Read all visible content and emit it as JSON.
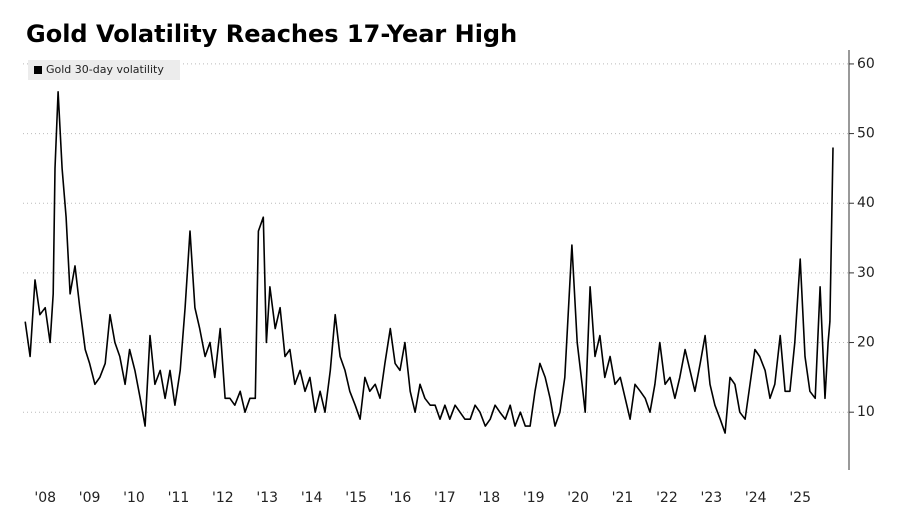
{
  "chart_data": {
    "type": "line",
    "title": "Gold Volatility Reaches 17-Year High",
    "series": [
      {
        "name": "Gold 30-day volatility",
        "color": "#000000",
        "x": [
          2008.05,
          2008.16,
          2008.27,
          2008.38,
          2008.5,
          2008.61,
          2008.68,
          2008.72,
          2008.79,
          2008.88,
          2008.97,
          2009.06,
          2009.17,
          2009.28,
          2009.4,
          2009.5,
          2009.62,
          2009.73,
          2009.85,
          2009.96,
          2010.07,
          2010.18,
          2010.3,
          2010.4,
          2010.52,
          2010.64,
          2010.75,
          2010.86,
          2010.97,
          2011.09,
          2011.2,
          2011.31,
          2011.42,
          2011.54,
          2011.65,
          2011.76,
          2011.87,
          2011.98,
          2012.1,
          2012.21,
          2012.32,
          2012.44,
          2012.55,
          2012.66,
          2012.77,
          2012.89,
          2013.0,
          2013.11,
          2013.23,
          2013.3,
          2013.41,
          2013.48,
          2013.56,
          2013.68,
          2013.79,
          2013.9,
          2014.01,
          2014.12,
          2014.24,
          2014.35,
          2014.46,
          2014.58,
          2014.69,
          2014.8,
          2014.92,
          2015.03,
          2015.14,
          2015.25,
          2015.36,
          2015.48,
          2015.59,
          2015.7,
          2015.81,
          2015.93,
          2016.04,
          2016.15,
          2016.27,
          2016.38,
          2016.49,
          2016.6,
          2016.72,
          2016.83,
          2016.94,
          2017.05,
          2017.17,
          2017.28,
          2017.39,
          2017.5,
          2017.61,
          2017.73,
          2017.84,
          2017.95,
          2018.07,
          2018.18,
          2018.29,
          2018.41,
          2018.52,
          2018.63,
          2018.74,
          2018.86,
          2018.97,
          2019.08,
          2019.2,
          2019.31,
          2019.42,
          2019.53,
          2019.64,
          2019.76,
          2019.87,
          2019.98,
          2020.09,
          2020.2,
          2020.36,
          2020.48,
          2020.59,
          2020.66,
          2020.77,
          2020.88,
          2020.99,
          2021.1,
          2021.22,
          2021.33,
          2021.45,
          2021.56,
          2021.67,
          2021.78,
          2021.9,
          2022.01,
          2022.12,
          2022.23,
          2022.34,
          2022.46,
          2022.57,
          2022.68,
          2022.79,
          2022.91,
          2023.02,
          2023.13,
          2023.25,
          2023.36,
          2023.47,
          2023.58,
          2023.7,
          2023.81,
          2023.92,
          2024.03,
          2024.14,
          2024.26,
          2024.37,
          2024.48,
          2024.59,
          2024.71,
          2024.82,
          2024.93,
          2025.05,
          2025.16,
          2025.27,
          2025.38,
          2025.5,
          2025.61,
          2025.72,
          2025.84,
          2025.95,
          2026.06,
          2026.13,
          2026.17,
          2026.24
        ],
        "values": [
          23,
          18,
          29,
          24,
          25,
          20,
          27,
          45,
          56,
          45,
          38,
          27,
          31,
          25,
          19,
          17,
          14,
          15,
          17,
          24,
          20,
          18,
          14,
          19,
          16,
          12,
          8,
          21,
          14,
          16,
          12,
          16,
          11,
          16,
          25,
          36,
          25,
          22,
          18,
          20,
          15,
          22,
          12,
          12,
          11,
          13,
          10,
          12,
          12,
          36,
          38,
          20,
          28,
          22,
          25,
          18,
          19,
          14,
          16,
          13,
          15,
          10,
          13,
          10,
          16,
          24,
          18,
          16,
          13,
          11,
          9,
          15,
          13,
          14,
          12,
          17,
          22,
          17,
          16,
          20,
          13,
          10,
          14,
          12,
          11,
          11,
          9,
          11,
          9,
          11,
          10,
          9,
          9,
          11,
          10,
          8,
          9,
          11,
          10,
          9,
          11,
          8,
          10,
          8,
          8,
          13,
          17,
          15,
          12,
          8,
          10,
          15,
          34,
          20,
          14,
          10,
          28,
          18,
          21,
          15,
          18,
          14,
          15,
          12,
          9,
          14,
          13,
          12,
          10,
          14,
          20,
          14,
          15,
          12,
          15,
          19,
          16,
          13,
          17,
          21,
          14,
          11,
          9,
          7,
          15,
          14,
          10,
          9,
          14,
          19,
          18,
          16,
          12,
          14,
          21,
          13,
          13,
          20,
          32,
          18,
          13,
          12,
          28,
          12,
          20,
          23,
          48
        ]
      }
    ],
    "xlim": [
      2008,
      2026.6
    ],
    "xticks": [
      {
        "value": 2008.5,
        "label": "'08"
      },
      {
        "value": 2009.5,
        "label": "'09"
      },
      {
        "value": 2010.5,
        "label": "'10"
      },
      {
        "value": 2011.5,
        "label": "'11"
      },
      {
        "value": 2012.5,
        "label": "'12"
      },
      {
        "value": 2013.5,
        "label": "'13"
      },
      {
        "value": 2014.5,
        "label": "'14"
      },
      {
        "value": 2015.5,
        "label": "'15"
      },
      {
        "value": 2016.5,
        "label": "'16"
      },
      {
        "value": 2017.5,
        "label": "'17"
      },
      {
        "value": 2018.5,
        "label": "'18"
      },
      {
        "value": 2019.5,
        "label": "'19"
      },
      {
        "value": 2020.5,
        "label": "'20"
      },
      {
        "value": 2021.5,
        "label": "'21"
      },
      {
        "value": 2022.5,
        "label": "'22"
      },
      {
        "value": 2023.5,
        "label": "'23"
      },
      {
        "value": 2024.5,
        "label": "'24"
      },
      {
        "value": 2025.5,
        "label": "'25"
      }
    ],
    "ylim": [
      1.7,
      62
    ],
    "yticks": [
      10,
      20,
      30,
      40,
      50,
      60
    ],
    "grid": true,
    "legend": "top-left"
  }
}
